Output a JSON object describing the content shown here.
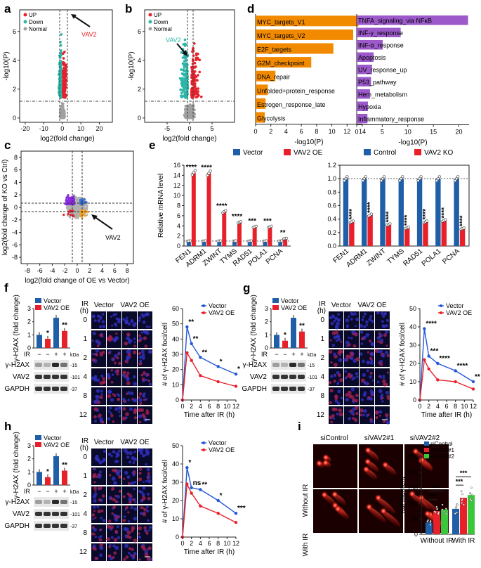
{
  "panel_labels": [
    "a",
    "b",
    "c",
    "d",
    "e",
    "f",
    "g",
    "h",
    "i"
  ],
  "volcano": {
    "legend": [
      "UP",
      "Down",
      "Normal"
    ],
    "colors": {
      "up": "#e8202a",
      "down": "#2bb6a8",
      "normal": "#a0a0a0"
    },
    "xlabel": "log2(fold change)",
    "ylabel": "-log10(P)",
    "a": {
      "xticks": [
        "-20",
        "-10",
        "0",
        "10",
        "20"
      ],
      "yticks": [
        "0",
        "2",
        "4",
        "6"
      ],
      "annotation": "VAV2",
      "annotation_color": "#e8202a"
    },
    "b": {
      "xticks": [
        "-5",
        "0",
        "5"
      ],
      "yticks": [
        "0",
        "2",
        "4",
        "6"
      ],
      "annotation": "VAV2",
      "annotation_color": "#2bb6a8"
    }
  },
  "scatter_c": {
    "xlabel": "log2(fold change of OE vs Vector)",
    "ylabel": "log2(fold change of KO vs Ctrl)",
    "xticks": [
      "-8",
      "-6",
      "-4",
      "-2",
      "0",
      "2",
      "4",
      "6",
      "8"
    ],
    "yticks": [
      "-8",
      "-6",
      "-4",
      "-2",
      "0",
      "2",
      "4",
      "6",
      "8"
    ],
    "annotation": "VAV2",
    "colors": {
      "purple": "#8a2be2",
      "orange": "#f5a623",
      "blue": "#3a6fd8",
      "red": "#e8202a",
      "grey": "#b0b0b0"
    }
  },
  "chart_data": [
    {
      "type": "bar",
      "panel": "d-left",
      "orientation": "horizontal",
      "categories": [
        "MYC_targets_V1",
        "MYC_targets_V2",
        "E2F_targets",
        "G2M_checkpoint",
        "DNA_repair",
        "Unfolded+protein_response",
        "Estrogen_response_late",
        "Glycolysis"
      ],
      "values": [
        13.5,
        12.8,
        10.2,
        7.3,
        2.6,
        1.6,
        1.3,
        1.2
      ],
      "xlabel": "-log10(P)",
      "xticks": [
        "0",
        "2",
        "4",
        "6",
        "8",
        "10",
        "12",
        "14"
      ],
      "xlim": [
        0,
        14
      ],
      "color": "#f28a00"
    },
    {
      "type": "bar",
      "panel": "d-right",
      "orientation": "horizontal",
      "categories": [
        "TNFA_signaling_via NFκB",
        "INF-γ_response",
        "INF-α_response",
        "Apoptosis",
        "UV_response_up",
        "P53_pathway",
        "Hem_metabolism",
        "Hypoxia",
        "Inflammatory_response"
      ],
      "values": [
        21.8,
        8.6,
        5.1,
        3.3,
        3.0,
        2.8,
        2.6,
        2.2,
        2.1
      ],
      "xlabel": "-log10(P)",
      "xticks": [
        "0",
        "5",
        "10",
        "15",
        "20"
      ],
      "xlim": [
        0,
        22
      ],
      "color": "#9b59c9"
    },
    {
      "type": "bar",
      "panel": "e-left",
      "ylabel": "Relative mRNA level",
      "categories": [
        "FEN1",
        "ADRM1",
        "ZWINT",
        "TYMS",
        "RAD51",
        "POLA1",
        "PCNA"
      ],
      "series": [
        {
          "name": "Vector",
          "values": [
            1,
            1,
            1,
            1,
            1,
            1,
            1
          ],
          "color": "#1f5fa8"
        },
        {
          "name": "VAV2 OE",
          "values": [
            14.5,
            14.4,
            6.8,
            4.7,
            3.8,
            3.8,
            1.5
          ],
          "color": "#e8202a"
        }
      ],
      "significance": [
        "****",
        "****",
        "****",
        "****",
        "***",
        "***",
        "**"
      ],
      "yticks": [
        "0",
        "2",
        "4",
        "6",
        "8",
        "10",
        "12",
        "14",
        "16"
      ],
      "ylim": [
        0,
        16
      ]
    },
    {
      "type": "bar",
      "panel": "e-right",
      "categories": [
        "FEN1",
        "ADRM1",
        "ZWINT",
        "TYMS",
        "RAD51",
        "POLA1",
        "PCNA"
      ],
      "series": [
        {
          "name": "Control",
          "values": [
            1,
            1,
            1,
            1,
            1,
            1,
            1
          ],
          "color": "#1f5fa8"
        },
        {
          "name": "VAV2 KO",
          "values": [
            0.36,
            0.46,
            0.32,
            0.27,
            0.36,
            0.38,
            0.26
          ],
          "color": "#e8202a"
        }
      ],
      "significance": [
        "****",
        "****",
        "****",
        "****",
        "****",
        "****",
        "****"
      ],
      "yticks": [
        "0.0",
        "0.2",
        "0.4",
        "0.6",
        "0.8",
        "1.0",
        "1.2"
      ],
      "ylim": [
        0,
        1.2
      ]
    },
    {
      "type": "bar",
      "panel": "f-bar",
      "ylabel": "γ-H2AX (fold change)",
      "series_names": [
        "Vector",
        "VAV2 OE"
      ],
      "values": [
        1.0,
        0.7,
        2.3,
        1.3
      ],
      "colors": [
        "#1f5fa8",
        "#e8202a",
        "#1f5fa8",
        "#e8202a"
      ],
      "ir": [
        "−",
        "−",
        "+",
        "+"
      ],
      "significance": [
        "",
        "*",
        "",
        "**"
      ],
      "yticks": [
        "0",
        "1",
        "2",
        "3"
      ],
      "ylim": [
        0,
        3
      ]
    },
    {
      "type": "line",
      "panel": "f-line",
      "x": [
        0,
        1,
        2,
        4,
        8,
        12
      ],
      "series": [
        {
          "name": "Vector",
          "values": [
            0,
            48,
            37,
            28,
            22,
            17
          ],
          "color": "#2457d6"
        },
        {
          "name": "VAV2 OE",
          "values": [
            0,
            31,
            26,
            16,
            12,
            9
          ],
          "color": "#e8202a"
        }
      ],
      "significance": [
        "",
        "**",
        "**",
        "**",
        "*",
        "*"
      ],
      "xlabel": "Time after IR (h)",
      "ylabel": "# of γ-H2AX foci/cell",
      "xticks": [
        "0",
        "2",
        "4",
        "6",
        "8",
        "10",
        "12"
      ],
      "yticks": [
        "0",
        "10",
        "20",
        "30",
        "40",
        "50",
        "60"
      ],
      "xlim": [
        0,
        12
      ],
      "ylim": [
        0,
        60
      ]
    },
    {
      "type": "bar",
      "panel": "g-bar",
      "ylabel": "γ-H2AX (fold change)",
      "series_names": [
        "Vector",
        "VAV2 OE"
      ],
      "values": [
        1.0,
        0.55,
        2.3,
        1.25
      ],
      "colors": [
        "#1f5fa8",
        "#e8202a",
        "#1f5fa8",
        "#e8202a"
      ],
      "ir": [
        "−",
        "−",
        "+",
        "+"
      ],
      "significance": [
        "",
        "*",
        "",
        "**"
      ],
      "yticks": [
        "0",
        "1",
        "2",
        "3"
      ],
      "ylim": [
        0,
        3
      ]
    },
    {
      "type": "line",
      "panel": "g-line",
      "x": [
        0,
        1,
        2,
        4,
        8,
        12
      ],
      "series": [
        {
          "name": "Vector",
          "values": [
            0,
            39,
            24,
            20,
            16,
            10
          ],
          "color": "#2457d6"
        },
        {
          "name": "VAV2 OE",
          "values": [
            0,
            22,
            17,
            11,
            10,
            6
          ],
          "color": "#e8202a"
        }
      ],
      "significance": [
        "",
        "****",
        "***",
        "****",
        "****",
        "**"
      ],
      "xlabel": "Time after IR (h)",
      "ylabel": "# of γ-H2AX foci/cell",
      "xticks": [
        "0",
        "2",
        "4",
        "6",
        "8",
        "10",
        "12"
      ],
      "yticks": [
        "0",
        "10",
        "20",
        "30",
        "40",
        "50"
      ],
      "xlim": [
        0,
        12
      ],
      "ylim": [
        0,
        50
      ]
    },
    {
      "type": "bar",
      "panel": "h-bar",
      "ylabel": "γ-H2AX (fold change)",
      "series_names": [
        "Vector",
        "VAV2 OE"
      ],
      "values": [
        1.0,
        0.6,
        2.2,
        1.1
      ],
      "colors": [
        "#1f5fa8",
        "#e8202a",
        "#1f5fa8",
        "#e8202a"
      ],
      "ir": [
        "−",
        "−",
        "+",
        "+"
      ],
      "significance": [
        "",
        "*",
        "",
        "**"
      ],
      "yticks": [
        "0",
        "1",
        "2",
        "3"
      ],
      "ylim": [
        0,
        3
      ]
    },
    {
      "type": "line",
      "panel": "h-line",
      "x": [
        0,
        1,
        2,
        4,
        8,
        12
      ],
      "series": [
        {
          "name": "Vector",
          "values": [
            0,
            38,
            27,
            26,
            20,
            13
          ],
          "color": "#2457d6"
        },
        {
          "name": "VAV2 OE",
          "values": [
            0,
            29,
            24,
            17,
            13,
            8
          ],
          "color": "#e8202a"
        }
      ],
      "significance": [
        "",
        "*",
        "ns",
        "**",
        "*",
        "***"
      ],
      "xlabel": "Time after IR (h)",
      "ylabel": "# of γ-H2AX foci/cell",
      "xticks": [
        "0",
        "2",
        "4",
        "6",
        "8",
        "10",
        "12"
      ],
      "yticks": [
        "0",
        "10",
        "20",
        "30",
        "40",
        "50"
      ],
      "xlim": [
        0,
        12
      ],
      "ylim": [
        0,
        50
      ]
    },
    {
      "type": "bar",
      "panel": "i-bar",
      "ylabel": "Tail moment",
      "categories": [
        "Without IR",
        "With IR"
      ],
      "series": [
        {
          "name": "siControl",
          "values": [
            38,
            82
          ],
          "color": "#1f5fa8"
        },
        {
          "name": "siVAV2#1",
          "values": [
            75,
            118
          ],
          "color": "#e8202a"
        },
        {
          "name": "siVAV2#2",
          "values": [
            80,
            127
          ],
          "color": "#3cc63c"
        }
      ],
      "significance": [
        "***",
        "***",
        "***",
        "***"
      ],
      "yticks": [
        "0",
        "50",
        "100",
        "150",
        "200",
        "250"
      ],
      "ylim": [
        0,
        250
      ]
    }
  ],
  "blot": {
    "ir_label": "IR",
    "ir_signs": [
      "−",
      "−",
      "+",
      "+"
    ],
    "kda_label": "kDa",
    "rows": [
      {
        "name": "γ-H2AX",
        "kda": "-15"
      },
      {
        "name": "VAV2",
        "kda": "-101"
      },
      {
        "name": "GAPDH",
        "kda": "-37"
      }
    ]
  },
  "micro": {
    "ir_label": "IR",
    "h_label": "(h)",
    "col_headers": [
      "Vector",
      "VAV2 OE"
    ],
    "times": [
      "0",
      "1",
      "2",
      "4",
      "8",
      "12"
    ]
  },
  "comet": {
    "col_headers": [
      "siControl",
      "siVAV2#1",
      "siVAV2#2"
    ],
    "row_labels": [
      "Without IR",
      "With IR"
    ]
  }
}
